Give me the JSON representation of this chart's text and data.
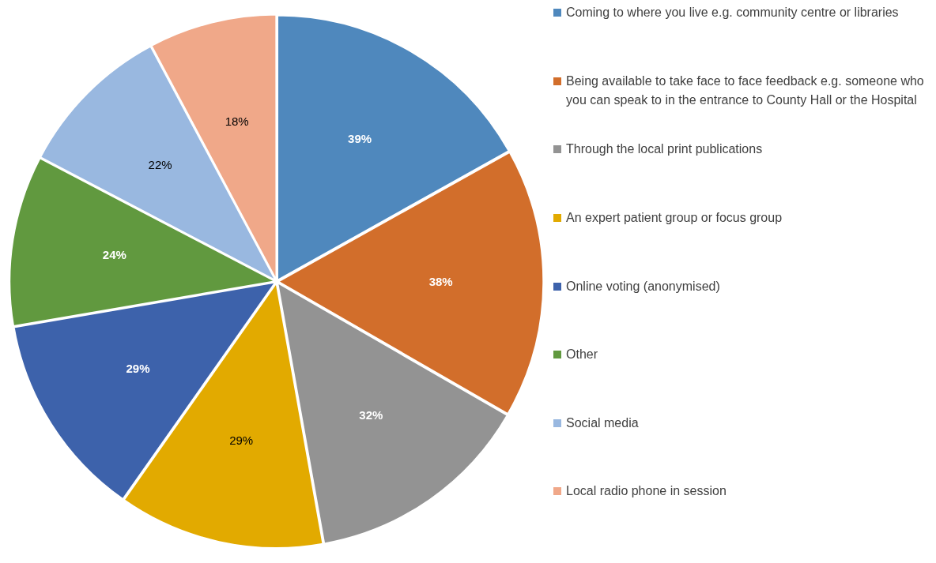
{
  "chart_data": {
    "type": "pie",
    "categories": [
      "Coming to where you live e.g. community centre or libraries",
      "Being available to take face to face feedback e.g. someone who you can speak to in the entrance to County Hall or the Hospital",
      "Through the local print publications",
      "An expert patient group or focus group",
      "Online voting (anonymised)",
      "Other",
      "Social media",
      "Local radio phone in session"
    ],
    "values": [
      39,
      38,
      32,
      29,
      29,
      24,
      22,
      18
    ],
    "colors": [
      "#4f88bd",
      "#d26e2b",
      "#939393",
      "#e2aa00",
      "#3d62ab",
      "#61993f",
      "#99b8e0",
      "#f0a889"
    ],
    "value_labels": [
      "39%",
      "38%",
      "32%",
      "29%",
      "29%",
      "24%",
      "22%",
      "18%"
    ],
    "legend": "right"
  }
}
